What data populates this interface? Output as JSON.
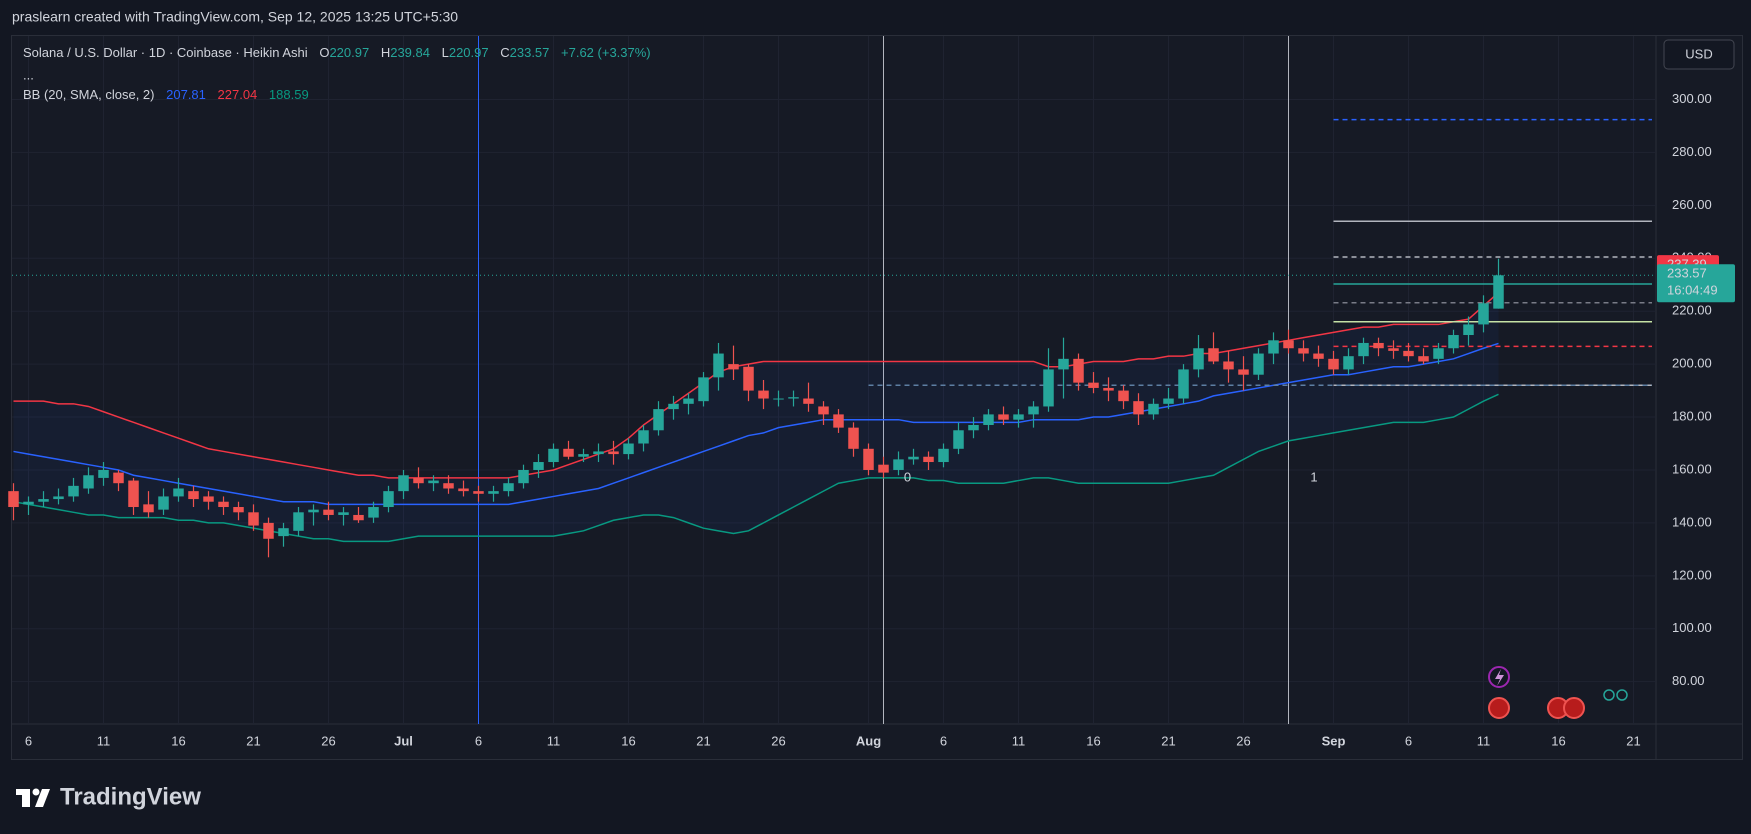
{
  "header": {
    "credit": "praslearn created with TradingView.com, Sep 12, 2025 13:25 UTC+5:30"
  },
  "chart_data": {
    "type": "candlestick",
    "title": "Solana / U.S. Dollar · 1D · Coinbase · Heikin Ashi",
    "more": "...",
    "ohlc_labels": [
      "O",
      "H",
      "L",
      "C"
    ],
    "change": "+7.62 (+3.37%)",
    "categories": [
      null,
      "6",
      null,
      null,
      null,
      null,
      "11",
      null,
      null,
      null,
      null,
      "16",
      null,
      null,
      null,
      null,
      "21",
      null,
      null,
      null,
      null,
      "26",
      null,
      null,
      null,
      null,
      "Jul",
      null,
      null,
      null,
      null,
      "6",
      null,
      null,
      null,
      null,
      "11",
      null,
      null,
      null,
      null,
      "16",
      null,
      null,
      null,
      null,
      "21",
      null,
      null,
      null,
      null,
      "26",
      null,
      null,
      null,
      null,
      null,
      "Aug",
      null,
      null,
      null,
      null,
      "6",
      null,
      null,
      null,
      null,
      "11",
      null,
      null,
      null,
      null,
      "16",
      null,
      null,
      null,
      null,
      "21",
      null,
      null,
      null,
      null,
      "26",
      null,
      null,
      null,
      null,
      null,
      "Sep",
      null,
      null,
      null,
      null,
      "6",
      null,
      null,
      null,
      null,
      "11",
      null,
      null,
      null,
      null,
      "16",
      null,
      null,
      null,
      null,
      "21",
      null
    ],
    "open": [
      152,
      147,
      148,
      149,
      150,
      153,
      157,
      159,
      156,
      147,
      145,
      150,
      152,
      150,
      148,
      146,
      144,
      140,
      135,
      137,
      144,
      145,
      143,
      143,
      142,
      146,
      152,
      157,
      155,
      155,
      153,
      152,
      151,
      152,
      155,
      160,
      163,
      168,
      165,
      166,
      167,
      166,
      170,
      175,
      183,
      185,
      186,
      195,
      200,
      199,
      190,
      187,
      187,
      187,
      184,
      181,
      176,
      168,
      162,
      160,
      164,
      165,
      163,
      168,
      175,
      177,
      181,
      179,
      181,
      184,
      198,
      202,
      193,
      191,
      190,
      186,
      181,
      185,
      187,
      198,
      206,
      201,
      198,
      196,
      204,
      209,
      206,
      204,
      202,
      198,
      203,
      208,
      206,
      205,
      203,
      202,
      206,
      211,
      215,
      220.97,
      null,
      null,
      null,
      null,
      null,
      null,
      null,
      null,
      null,
      null
    ],
    "high": [
      155,
      150,
      152,
      153,
      157,
      161,
      163,
      160,
      157,
      152,
      153,
      157,
      154,
      152,
      150,
      148,
      147,
      142,
      140,
      146,
      147,
      148,
      146,
      146,
      148,
      154,
      160,
      161,
      158,
      158,
      156,
      154,
      154,
      157,
      162,
      166,
      170,
      171,
      168,
      170,
      171,
      172,
      177,
      186,
      188,
      189,
      197,
      208,
      207,
      200,
      194,
      190,
      190,
      193,
      186,
      183,
      178,
      170,
      165,
      167,
      168,
      167,
      170,
      178,
      180,
      183,
      184,
      183,
      186,
      206,
      210,
      204,
      197,
      195,
      192,
      189,
      187,
      191,
      200,
      211,
      212,
      205,
      203,
      206,
      212,
      213,
      209,
      207,
      205,
      206,
      210,
      210,
      209,
      208,
      206,
      208,
      213,
      218,
      226,
      239.84,
      null,
      null,
      null,
      null,
      null,
      null,
      null,
      null,
      null,
      null
    ],
    "low": [
      141,
      143,
      146,
      147,
      148,
      151,
      154,
      152,
      143,
      142,
      143,
      148,
      146,
      145,
      143,
      141,
      137,
      127,
      131,
      135,
      139,
      141,
      139,
      140,
      140,
      144,
      149,
      153,
      152,
      151,
      150,
      148,
      148,
      150,
      153,
      157,
      161,
      164,
      163,
      163,
      162,
      164,
      167,
      173,
      179,
      181,
      184,
      190,
      194,
      186,
      183,
      184,
      184,
      182,
      177,
      174,
      165,
      158,
      157,
      158,
      162,
      160,
      161,
      166,
      172,
      175,
      177,
      176,
      176,
      182,
      187,
      190,
      189,
      186,
      183,
      177,
      179,
      183,
      185,
      195,
      200,
      193,
      190,
      194,
      200,
      204,
      201,
      199,
      196,
      196,
      200,
      203,
      202,
      201,
      200,
      200,
      204,
      207,
      212,
      220.97,
      null,
      null,
      null,
      null,
      null,
      null,
      null,
      null,
      null,
      null
    ],
    "close": [
      146,
      148,
      149,
      150,
      154,
      158,
      160,
      155,
      146,
      144,
      150,
      153,
      149,
      148,
      146,
      144,
      139,
      134,
      138,
      144,
      145,
      143,
      144,
      141,
      146,
      152,
      158,
      155,
      156,
      153,
      152,
      151,
      152,
      155,
      160,
      163,
      168,
      165,
      166,
      167,
      166,
      170,
      175,
      183,
      185,
      187,
      195,
      204,
      198,
      190,
      187,
      187,
      187.5,
      185,
      181,
      176,
      168,
      160,
      159,
      164,
      165,
      163,
      168,
      175,
      177,
      181,
      179,
      181,
      184,
      198,
      202,
      193,
      191,
      190,
      186,
      181,
      185,
      187,
      198,
      206,
      201,
      198,
      196,
      204,
      209,
      206,
      204,
      202,
      198,
      203,
      208,
      206,
      205,
      203,
      201,
      206,
      211,
      215,
      223,
      233.57,
      null,
      null,
      null,
      null,
      null,
      null,
      null,
      null,
      null,
      null
    ],
    "up_color": "#26a69a",
    "down_color": "#ef5350",
    "indicator": {
      "name": "BB (20, SMA, close, 2)",
      "fill": "#2962ff",
      "series": [
        {
          "color": "#2962ff",
          "values": [
            167,
            166,
            165,
            164,
            163,
            162,
            161,
            160,
            158,
            157,
            156,
            155,
            154,
            153,
            152,
            151,
            150,
            149,
            148,
            148,
            148,
            147,
            147,
            147,
            147,
            147,
            147,
            147,
            147,
            147,
            147,
            147,
            147,
            147,
            148,
            149,
            150,
            151,
            152,
            153,
            155,
            157,
            159,
            161,
            163,
            165,
            167,
            169,
            171,
            173,
            174,
            176,
            177,
            178,
            179,
            179,
            179,
            179,
            179,
            179,
            178,
            178,
            178,
            178,
            178,
            178,
            178,
            178,
            179,
            179,
            179,
            179,
            180,
            180,
            181,
            182,
            183,
            184,
            185,
            186,
            188,
            189,
            190,
            191,
            192,
            193,
            194,
            195,
            196,
            196,
            197,
            198,
            199,
            199,
            200,
            201,
            202,
            204,
            206,
            207.81,
            null,
            null,
            null,
            null,
            null,
            null,
            null,
            null,
            null,
            null
          ]
        },
        {
          "color": "#f23645",
          "values": [
            186,
            186,
            186,
            185,
            185,
            184,
            182,
            180,
            178,
            176,
            174,
            172,
            170,
            168,
            167,
            166,
            165,
            164,
            163,
            162,
            161,
            160,
            159,
            158,
            158,
            157,
            157,
            157,
            157,
            157,
            157,
            157,
            157,
            157,
            158,
            159,
            160,
            162,
            164,
            166,
            168,
            172,
            177,
            181,
            185,
            189,
            193,
            197,
            199,
            200,
            201,
            201,
            201,
            201,
            201,
            201,
            201,
            201,
            201,
            201,
            201,
            201,
            201,
            201,
            201,
            201,
            201,
            201,
            201,
            199,
            199,
            200,
            201,
            201,
            201,
            202,
            202,
            203,
            203,
            204,
            204,
            205,
            206,
            207,
            208,
            209,
            210,
            211,
            212,
            213,
            214,
            214,
            215,
            215,
            215,
            215,
            216,
            217,
            222,
            227.04,
            null,
            null,
            null,
            null,
            null,
            null,
            null,
            null,
            null,
            null
          ]
        },
        {
          "color": "#089981",
          "values": [
            148,
            147,
            146,
            145,
            144,
            143,
            143,
            142,
            142,
            142,
            142,
            141,
            141,
            140,
            140,
            139,
            138,
            137,
            136,
            135,
            134,
            134,
            133,
            133,
            133,
            133,
            134,
            135,
            135,
            135,
            135,
            135,
            135,
            135,
            135,
            135,
            135,
            136,
            137,
            139,
            141,
            142,
            143,
            143,
            142,
            140,
            138,
            137,
            136,
            137,
            140,
            143,
            146,
            149,
            152,
            155,
            156,
            157,
            157,
            157,
            157,
            156,
            156,
            155,
            155,
            155,
            155,
            156,
            157,
            157,
            156,
            155,
            155,
            155,
            155,
            155,
            155,
            155,
            156,
            157,
            158,
            161,
            164,
            167,
            169,
            171,
            172,
            173,
            174,
            175,
            176,
            177,
            178,
            178,
            178,
            179,
            180,
            183,
            186,
            188.59,
            null,
            null,
            null,
            null,
            null,
            null,
            null,
            null,
            null,
            null
          ]
        }
      ]
    },
    "ylim": [
      64,
      324
    ],
    "yticks": [
      {
        "value": 80,
        "label": "80.00"
      },
      {
        "value": 100,
        "label": "100.00"
      },
      {
        "value": 120,
        "label": "120.00"
      },
      {
        "value": 140,
        "label": "140.00"
      },
      {
        "value": 160,
        "label": "160.00"
      },
      {
        "value": 180,
        "label": "180.00"
      },
      {
        "value": 200,
        "label": "200.00"
      },
      {
        "value": 220,
        "label": "220.00"
      },
      {
        "value": 240,
        "label": "240.00"
      },
      {
        "value": 260,
        "label": "260.00"
      },
      {
        "value": 280,
        "label": "280.00"
      },
      {
        "value": 300,
        "label": "300.00"
      }
    ],
    "grid": true,
    "currency": "USD",
    "alert_price": 237.39,
    "alert_color": "#f23645",
    "countdown": "16:04:49",
    "levels": [
      {
        "value": 292.4,
        "color": "#2962ff",
        "style": "dashed"
      },
      {
        "value": 254,
        "color": "#b2b5be",
        "style": "solid"
      },
      {
        "value": 240.5,
        "color": "#b2b5be",
        "style": "dashed"
      },
      {
        "value": 230.3,
        "color": "#26a69a",
        "style": "solid"
      },
      {
        "value": 223.2,
        "color": "#787b86",
        "style": "dashed"
      },
      {
        "value": 216,
        "color": "#c5e1a5",
        "style": "solid"
      },
      {
        "value": 206.7,
        "color": "#f23645",
        "style": "dashed"
      },
      {
        "value": 192,
        "color": "#b2b5be",
        "style": "solid"
      },
      {
        "value": 192,
        "color": "#5d7fa3",
        "style": "dashed"
      }
    ],
    "markers": [
      "0",
      "1"
    ]
  },
  "footer": {
    "logo": "TradingView"
  }
}
